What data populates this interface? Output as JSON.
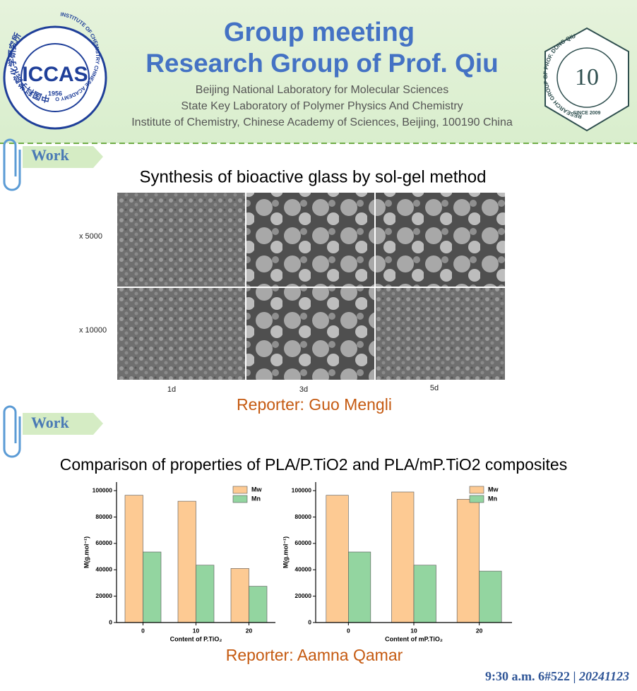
{
  "header": {
    "title": "Group meeting",
    "subtitle": "Research Group of Prof. Qiu",
    "affiliations": [
      "Beijing National Laboratory for Molecular Sciences",
      "State Key Laboratory of Polymer Physics And Chemistry",
      "Institute of Chemistry, Chinese Academy of Sciences, Beijing, 100190 China"
    ]
  },
  "left_logo": {
    "name": "ICCAS",
    "year": "1956",
    "ring_top": "中国科学院化学研究所",
    "ring_bottom": "INSTITUTE OF CHEMISTRY  CHINESE ACADEMY OF SCIENCES"
  },
  "right_logo": {
    "ring": "RESEARCH GROUP OF PROF. DONG QIU",
    "since": "SINCE 2009"
  },
  "sections": [
    {
      "tag": "Work",
      "title": "Synthesis of bioactive glass by sol-gel method",
      "row_labels": [
        "x 5000",
        "x 10000"
      ],
      "column_labels": [
        "1d",
        "3d",
        "5d"
      ],
      "reporter": "Reporter: Guo Mengli"
    },
    {
      "tag": "Work",
      "title": "Comparison of properties of PLA/P.TiO2 and PLA/mP.TiO2 composites",
      "reporter": "Reporter: Aamna Qamar",
      "charts": [
        {
          "type": "bar",
          "categories": [
            "0",
            "10",
            "20"
          ],
          "xlabel": "Content of P.TiO₂",
          "ylabel": "M(g.mol⁻¹)",
          "series": [
            {
              "name": "Mw",
              "color": "#fdca93",
              "values": [
                96500,
                92000,
                41000
              ]
            },
            {
              "name": "Mn",
              "color": "#93d5a0",
              "values": [
                53500,
                43500,
                27500
              ]
            }
          ],
          "ylim": [
            0,
            106500
          ],
          "yticks": [
            0,
            20000,
            40000,
            60000,
            80000,
            100000
          ],
          "legend": "upper right"
        },
        {
          "type": "bar",
          "categories": [
            "0",
            "10",
            "20"
          ],
          "xlabel": "Content of mP.TiO₂",
          "ylabel": "M(g.mol⁻¹)",
          "series": [
            {
              "name": "Mw",
              "color": "#fdca93",
              "values": [
                96500,
                99000,
                93500
              ]
            },
            {
              "name": "Mn",
              "color": "#93d5a0",
              "values": [
                53500,
                43500,
                39000
              ]
            }
          ],
          "ylim": [
            0,
            106500
          ],
          "yticks": [
            0,
            20000,
            40000,
            60000,
            80000,
            100000
          ],
          "legend": "upper right"
        }
      ]
    }
  ],
  "footer": {
    "time": "9:30 a.m. 6#522",
    "separator": "|",
    "date": "20241123"
  }
}
